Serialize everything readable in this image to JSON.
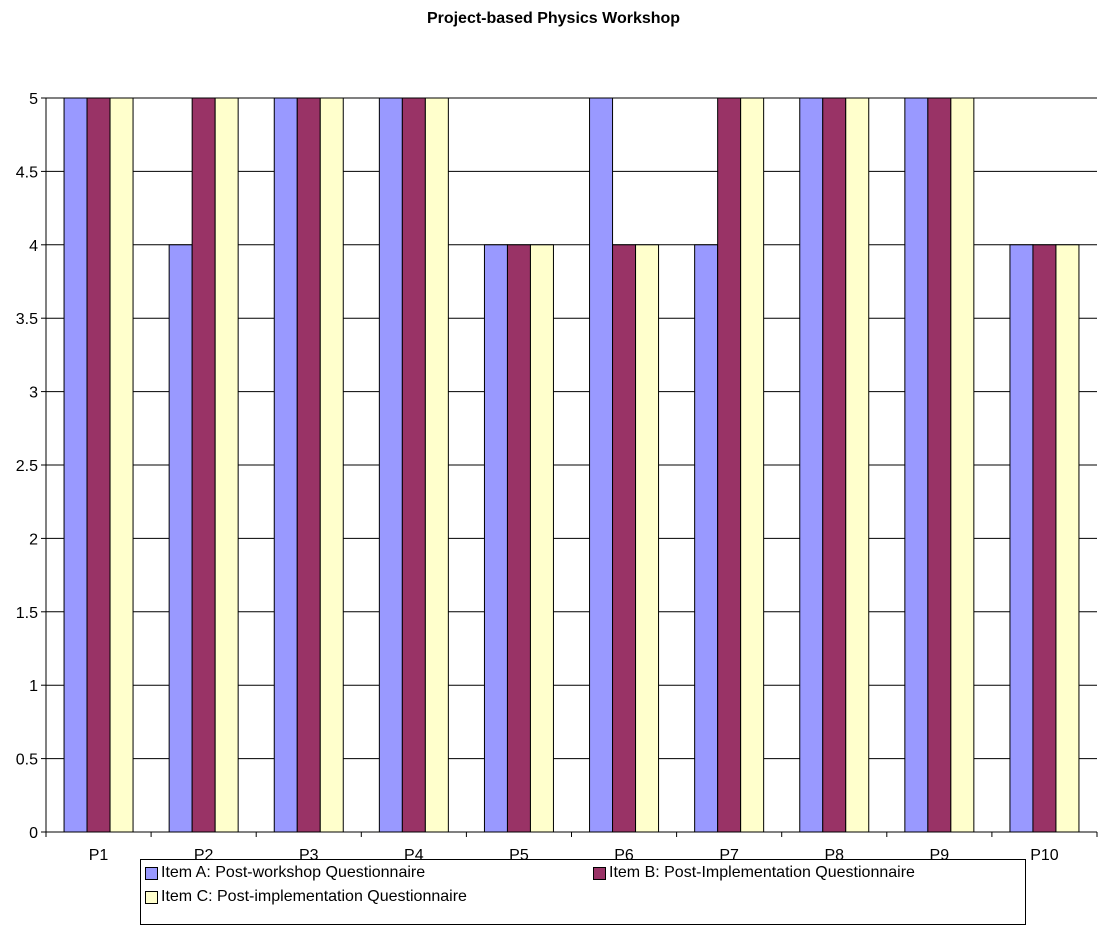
{
  "chart_data": {
    "type": "bar",
    "title": "Project-based Physics Workshop",
    "categories": [
      "P1",
      "P2",
      "P3",
      "P4",
      "P5",
      "P6",
      "P7",
      "P8",
      "P9",
      "P10"
    ],
    "series": [
      {
        "name": "Item A: Post-workshop Questionnaire",
        "color": "#9999ff",
        "values": [
          5,
          4,
          5,
          5,
          4,
          5,
          4,
          5,
          5,
          4
        ]
      },
      {
        "name": "Item B: Post-Implementation Questionnaire",
        "color": "#993366",
        "values": [
          5,
          5,
          5,
          5,
          4,
          4,
          5,
          5,
          5,
          4
        ]
      },
      {
        "name": "Item C:  Post-implementation Questionnaire",
        "color": "#ffffcc",
        "values": [
          5,
          5,
          5,
          5,
          4,
          4,
          5,
          5,
          5,
          4
        ]
      }
    ],
    "ylim": [
      0,
      5
    ],
    "yticks": [
      "0",
      "0.5",
      "1",
      "1.5",
      "2",
      "2.5",
      "3",
      "3.5",
      "4",
      "4.5",
      "5"
    ],
    "grid": true,
    "legend_position": "bottom"
  }
}
